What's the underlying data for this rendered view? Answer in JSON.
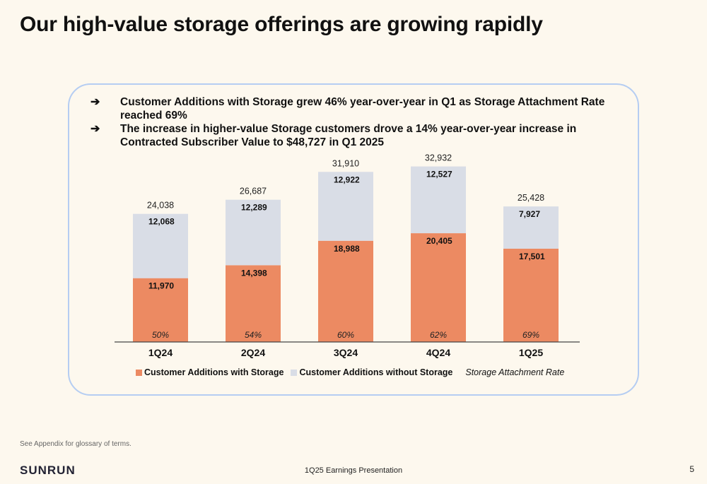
{
  "title": "Our high-value storage offerings are growing rapidly",
  "bullets": [
    {
      "icon": "arrow-right-icon",
      "glyph": "➔",
      "text": "Customer Additions with Storage grew 46% year-over-year in Q1 as Storage Attachment Rate reached 69%"
    },
    {
      "icon": "arrow-right-icon",
      "glyph": "➔",
      "text": "The increase in higher-value Storage customers drove a 14% year-over-year increase in Contracted Subscriber Value to $48,727 in Q1 2025"
    }
  ],
  "chart_data": {
    "type": "bar",
    "stacked": true,
    "categories": [
      "1Q24",
      "2Q24",
      "3Q24",
      "4Q24",
      "1Q25"
    ],
    "series": [
      {
        "name": "Customer Additions with Storage",
        "color": "#ec8a62",
        "values": [
          11970,
          14398,
          18988,
          20405,
          17501
        ],
        "labels": [
          "11,970",
          "14,398",
          "18,988",
          "20,405",
          "17,501"
        ]
      },
      {
        "name": "Customer Additions without Storage",
        "color": "#d9dde6",
        "values": [
          12068,
          12289,
          12922,
          12527,
          7927
        ],
        "labels": [
          "12,068",
          "12,289",
          "12,922",
          "12,527",
          "7,927"
        ]
      }
    ],
    "totals": [
      "24,038",
      "26,687",
      "31,910",
      "32,932",
      "25,428"
    ],
    "rate_series_name": "Storage Attachment Rate",
    "attachment_rates": [
      "50%",
      "54%",
      "60%",
      "62%",
      "69%"
    ],
    "ylim": [
      0,
      35000
    ],
    "grid": false,
    "legend_position": "bottom"
  },
  "footnote": "See Appendix for glossary of terms.",
  "logo_text": "SUNRUN",
  "footer_center": "1Q25 Earnings Presentation",
  "page_number": "5"
}
